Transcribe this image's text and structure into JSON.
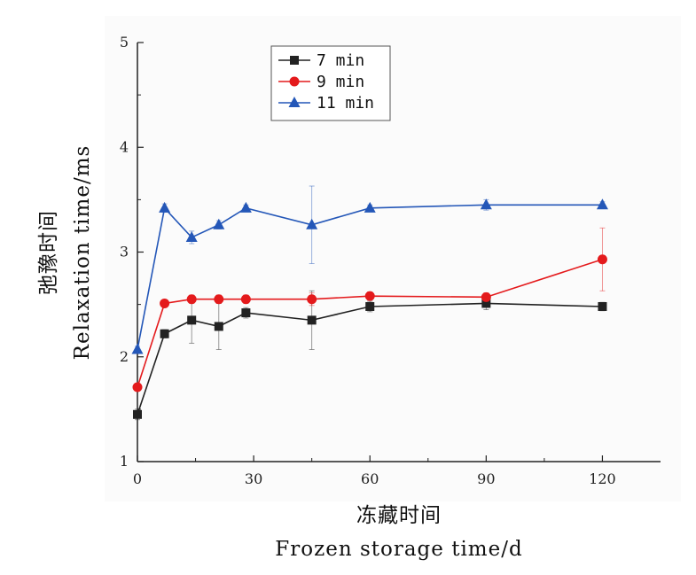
{
  "chart_data": {
    "type": "line",
    "x_ticks": [
      0,
      30,
      60,
      90,
      120
    ],
    "y_ticks": [
      1,
      2,
      3,
      4,
      5
    ],
    "xlim": [
      0,
      135
    ],
    "ylim": [
      1,
      5
    ],
    "xlabel_cn": "冻藏时间",
    "xlabel_en": "Frozen storage time/d",
    "ylabel_cn": "弛豫时间",
    "ylabel_en": "Relaxation time/ms",
    "legend_position": "top-center",
    "grid": false,
    "series": [
      {
        "name": "7 min",
        "color": "#222222",
        "marker": "square",
        "x": [
          0,
          7,
          14,
          21,
          28,
          45,
          60,
          90,
          120
        ],
        "y": [
          1.45,
          2.22,
          2.35,
          2.29,
          2.42,
          2.35,
          2.48,
          2.51,
          2.48
        ],
        "err": [
          0.05,
          0.04,
          0.22,
          0.22,
          0.05,
          0.28,
          0.05,
          0.06,
          0.04
        ]
      },
      {
        "name": "9 min",
        "color": "#e41a1c",
        "marker": "circle",
        "x": [
          0,
          7,
          14,
          21,
          28,
          45,
          60,
          90,
          120
        ],
        "y": [
          1.71,
          2.51,
          2.55,
          2.55,
          2.55,
          2.55,
          2.58,
          2.57,
          2.93
        ],
        "err": [
          0.03,
          0.03,
          0.04,
          0.04,
          0.04,
          0.06,
          0.04,
          0.04,
          0.3
        ]
      },
      {
        "name": "11 min",
        "color": "#2457b8",
        "marker": "triangle",
        "x": [
          0,
          7,
          14,
          21,
          28,
          45,
          60,
          90,
          120
        ],
        "y": [
          2.07,
          3.42,
          3.14,
          3.26,
          3.42,
          3.26,
          3.42,
          3.45,
          3.45
        ],
        "err": [
          0.03,
          0.04,
          0.06,
          0.04,
          0.03,
          0.37,
          0.03,
          0.05,
          0.03
        ]
      }
    ]
  }
}
